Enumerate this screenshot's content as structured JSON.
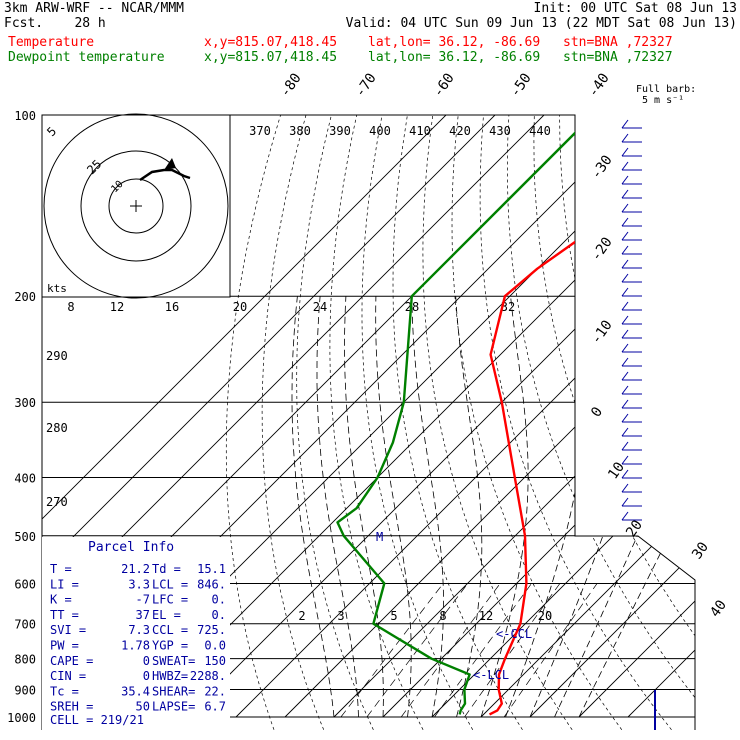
{
  "header": {
    "title": "3km ARW-WRF -- NCAR/MMM",
    "fcst_label": "Fcst.",
    "fcst_value": "28 h",
    "init": "Init: 00 UTC Sat 08 Jun 13",
    "valid": "Valid: 04 UTC Sun 09 Jun 13 (22 MDT Sat 08 Jun 13)"
  },
  "legend": {
    "temperature": {
      "name": "Temperature",
      "xy": "x,y=815.07,418.45",
      "latlon": "lat,lon= 36.12, -86.69",
      "stn": "stn=BNA ,72327",
      "color": "#ff0000"
    },
    "dewpoint": {
      "name": "Dewpoint temperature",
      "xy": "x,y=815.07,418.45",
      "latlon": "lat,lon= 36.12, -86.69",
      "stn": "stn=BNA ,72327",
      "color": "#008000"
    }
  },
  "barb_key": {
    "line1": "Full barb:",
    "line2": "5 m s⁻¹"
  },
  "hodograph": {
    "speed_unit": "kts",
    "ring_labels": [
      "5",
      "25",
      "10"
    ]
  },
  "parcel_info": {
    "title": "Parcel Info",
    "rows": [
      [
        "T  =",
        "21.2",
        "Td =",
        "15.1"
      ],
      [
        "LI =",
        "3.3",
        "LCL =",
        "846."
      ],
      [
        "K  =",
        "-7",
        "LFC =",
        "0."
      ],
      [
        "TT =",
        "37",
        "EL  =",
        "0."
      ],
      [
        "SVI =",
        "7.3",
        "CCL =",
        "725."
      ],
      [
        "PW =",
        "1.78",
        "YGP =",
        "0.0"
      ],
      [
        "CAPE =",
        "0",
        "SWEAT=",
        "150"
      ],
      [
        "CIN =",
        "0",
        "HWBZ=",
        "2288."
      ],
      [
        "Tc =",
        "35.4",
        "SHEAR=",
        "22."
      ],
      [
        "SREH =",
        "50",
        "LAPSE=",
        "6.7"
      ]
    ],
    "cell": "CELL = 219/21"
  },
  "annotations": {
    "ccl": "<-CCL",
    "lcl": "<-LCL",
    "m_marker": "M"
  },
  "chart_data": {
    "type": "line",
    "chart_kind": "Skew-T log-P",
    "y_scale": "log",
    "ylim": [
      1000,
      100
    ],
    "y_ticks": [
      "100",
      "200",
      "300",
      "400",
      "500",
      "600",
      "700",
      "800",
      "900",
      "1000"
    ],
    "isotherm_labels": [
      "-80",
      "-70",
      "-60",
      "-50",
      "-40",
      "-30",
      "-20",
      "-10",
      "0",
      "10",
      "20",
      "30",
      "40"
    ],
    "isentrope_top_labels": [
      "370",
      "380",
      "390",
      "400",
      "410",
      "420",
      "430",
      "440"
    ],
    "isentrope_left_labels": [
      "290",
      "280",
      "270"
    ],
    "mixing_ratio_labels": [
      "2",
      "3",
      "5",
      "8",
      "12",
      "20"
    ],
    "hodo_speed_ticks": [
      "8",
      "12",
      "16",
      "20",
      "24",
      "28",
      "32"
    ],
    "series": [
      {
        "name": "Temperature",
        "color": "#ff0000",
        "p": [
          100,
          150,
          180,
          200,
          250,
          300,
          400,
          500,
          600,
          700,
          800,
          850,
          900,
          950,
          975,
          990
        ],
        "t": [
          -57,
          -56,
          -60,
          -61,
          -52,
          -40,
          -22,
          -8,
          2,
          9,
          13,
          15,
          18,
          21.5,
          22,
          21.2
        ]
      },
      {
        "name": "Dewpoint temperature",
        "color": "#008000",
        "p": [
          100,
          150,
          200,
          300,
          350,
          400,
          450,
          475,
          500,
          600,
          700,
          800,
          850,
          900,
          950,
          975,
          990
        ],
        "t": [
          -80,
          -80,
          -80,
          -60,
          -54,
          -50,
          -48,
          -49,
          -45,
          -27,
          -21,
          -2,
          9,
          11,
          14,
          14.5,
          15.1
        ]
      }
    ],
    "wind_barbs": "right margin, full barb = 5 m s-1"
  }
}
